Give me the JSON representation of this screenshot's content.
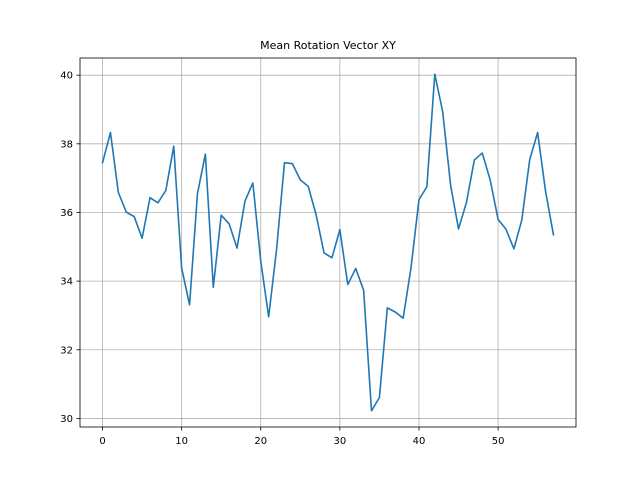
{
  "chart_data": {
    "type": "line",
    "title": "Mean Rotation Vector XY",
    "xlabel": "",
    "ylabel": "",
    "xlim": [
      -2.85,
      59.85
    ],
    "ylim": [
      29.75,
      40.5
    ],
    "x_ticks": [
      0,
      10,
      20,
      30,
      40,
      50
    ],
    "y_ticks": [
      30,
      32,
      34,
      36,
      38,
      40
    ],
    "grid": true,
    "line_color": "#1f77b4",
    "series": [
      {
        "x": [
          0,
          1,
          2,
          3,
          4,
          5,
          6,
          7,
          8,
          9,
          10,
          11,
          12,
          13,
          14,
          15,
          16,
          17,
          18,
          19,
          20,
          21,
          22,
          23,
          24,
          25,
          26,
          27,
          28,
          29,
          30,
          31,
          32,
          33,
          34,
          35,
          36,
          37,
          38,
          39,
          40,
          41,
          42,
          43,
          44,
          45,
          46,
          47,
          48,
          49,
          50,
          51,
          52,
          53,
          54,
          55,
          56,
          57
        ],
        "values": [
          37.45,
          38.33,
          36.58,
          36.01,
          35.88,
          35.25,
          36.43,
          36.28,
          36.64,
          37.93,
          34.38,
          33.31,
          36.55,
          37.7,
          33.82,
          35.92,
          35.67,
          34.96,
          36.33,
          36.86,
          34.58,
          32.96,
          34.93,
          37.45,
          37.42,
          36.95,
          36.76,
          35.93,
          34.82,
          34.68,
          35.5,
          33.9,
          34.37,
          33.74,
          30.22,
          30.61,
          33.22,
          33.1,
          32.92,
          34.4,
          36.37,
          36.75,
          40.03,
          38.93,
          36.79,
          35.52,
          36.29,
          37.53,
          37.73,
          36.95,
          35.8,
          35.51,
          34.94,
          35.78,
          37.54,
          38.33,
          36.62,
          35.35
        ]
      }
    ]
  }
}
